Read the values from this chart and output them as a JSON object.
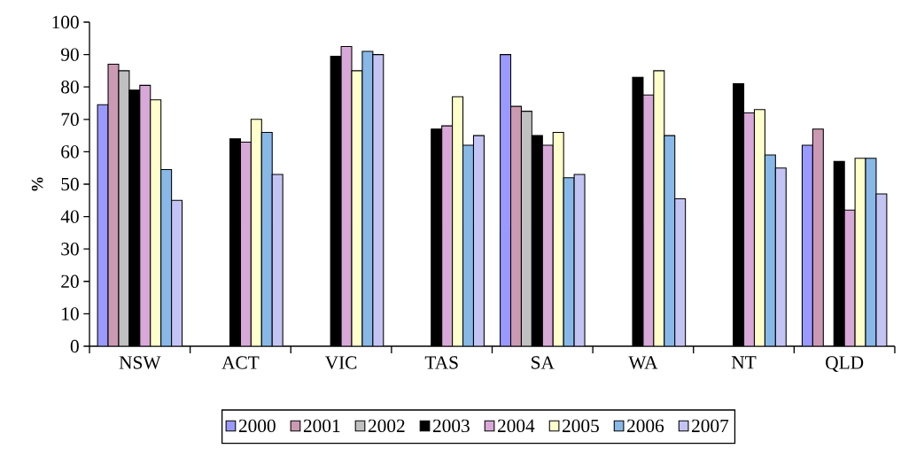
{
  "chart_data": {
    "type": "bar",
    "ylabel": "%",
    "categories": [
      "NSW",
      "ACT",
      "VIC",
      "TAS",
      "SA",
      "WA",
      "NT",
      "QLD"
    ],
    "series": [
      {
        "name": "2000",
        "color": "#9999ff",
        "values": [
          74.5,
          null,
          null,
          null,
          90,
          null,
          null,
          62
        ]
      },
      {
        "name": "2001",
        "color": "#cc99b3",
        "values": [
          87,
          null,
          null,
          null,
          74,
          null,
          null,
          67
        ]
      },
      {
        "name": "2002",
        "color": "#c0c0c0",
        "values": [
          85,
          null,
          null,
          null,
          72.5,
          null,
          null,
          null
        ]
      },
      {
        "name": "2003",
        "color": "#000000",
        "values": [
          79,
          64,
          89.5,
          67,
          65,
          83,
          81,
          57
        ]
      },
      {
        "name": "2004",
        "color": "#d8a8d8",
        "values": [
          80.5,
          63,
          92.5,
          68,
          62,
          77.5,
          72,
          42
        ]
      },
      {
        "name": "2005",
        "color": "#ffffcc",
        "values": [
          76,
          70,
          85,
          77,
          66,
          85,
          73,
          58
        ]
      },
      {
        "name": "2006",
        "color": "#88b8e8",
        "values": [
          54.5,
          66,
          91,
          62,
          52,
          65,
          59,
          58
        ]
      },
      {
        "name": "2007",
        "color": "#c4c4f4",
        "values": [
          45,
          53,
          90,
          65,
          53,
          45.5,
          55,
          47
        ]
      }
    ],
    "ylim": [
      0,
      100
    ],
    "yticks": [
      0,
      10,
      20,
      30,
      40,
      50,
      60,
      70,
      80,
      90,
      100
    ],
    "grid": false,
    "legend": "bottom"
  }
}
